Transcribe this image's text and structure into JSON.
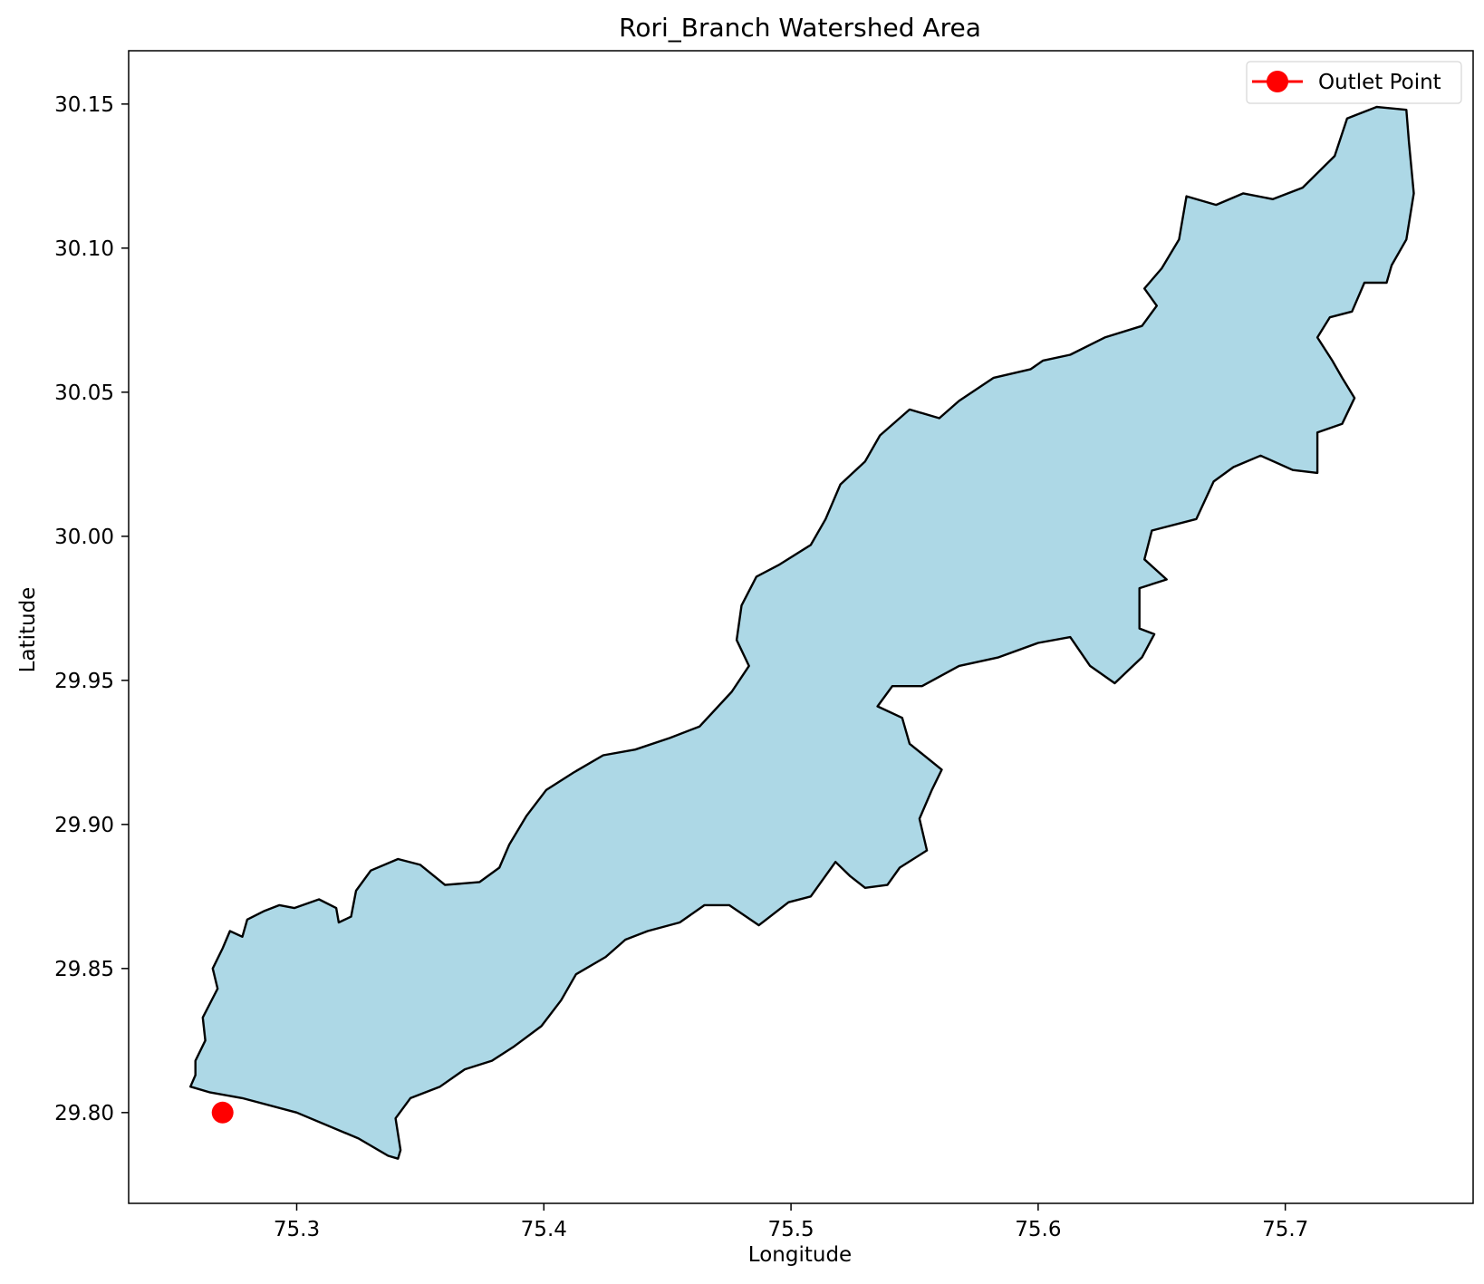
{
  "chart_data": {
    "type": "map",
    "title": "Rori_Branch Watershed Area",
    "xlabel": "Longitude",
    "ylabel": "Latitude",
    "xlim": [
      75.232,
      75.776
    ],
    "ylim": [
      29.7685,
      30.1685
    ],
    "x_ticks": [
      75.3,
      75.4,
      75.5,
      75.6,
      75.7
    ],
    "x_tick_labels": [
      "75.3",
      "75.4",
      "75.5",
      "75.6",
      "75.7"
    ],
    "y_ticks": [
      29.8,
      29.85,
      29.9,
      29.95,
      30.0,
      30.05,
      30.1,
      30.15
    ],
    "y_tick_labels": [
      "29.80",
      "29.85",
      "29.90",
      "29.95",
      "30.00",
      "30.05",
      "30.10",
      "30.15"
    ],
    "grid": false,
    "legend": {
      "location": "top-right",
      "entries": [
        {
          "label": "Outlet Point",
          "color": "#ff0000"
        }
      ]
    },
    "watershed": {
      "fill_color": "#add8e6",
      "edge_color": "#000000",
      "boundary": [
        [
          75.257,
          29.809
        ],
        [
          75.259,
          29.813
        ],
        [
          75.259,
          29.818
        ],
        [
          75.263,
          29.825
        ],
        [
          75.262,
          29.833
        ],
        [
          75.265,
          29.838
        ],
        [
          75.268,
          29.843
        ],
        [
          75.266,
          29.85
        ],
        [
          75.27,
          29.857
        ],
        [
          75.273,
          29.863
        ],
        [
          75.278,
          29.861
        ],
        [
          75.28,
          29.867
        ],
        [
          75.287,
          29.87
        ],
        [
          75.293,
          29.872
        ],
        [
          75.299,
          29.871
        ],
        [
          75.309,
          29.874
        ],
        [
          75.316,
          29.871
        ],
        [
          75.317,
          29.866
        ],
        [
          75.322,
          29.868
        ],
        [
          75.324,
          29.877
        ],
        [
          75.33,
          29.884
        ],
        [
          75.341,
          29.888
        ],
        [
          75.35,
          29.886
        ],
        [
          75.36,
          29.879
        ],
        [
          75.374,
          29.88
        ],
        [
          75.382,
          29.885
        ],
        [
          75.386,
          29.893
        ],
        [
          75.393,
          29.903
        ],
        [
          75.401,
          29.912
        ],
        [
          75.412,
          29.918
        ],
        [
          75.424,
          29.924
        ],
        [
          75.437,
          29.926
        ],
        [
          75.451,
          29.93
        ],
        [
          75.463,
          29.934
        ],
        [
          75.476,
          29.946
        ],
        [
          75.483,
          29.955
        ],
        [
          75.478,
          29.964
        ],
        [
          75.48,
          29.976
        ],
        [
          75.486,
          29.986
        ],
        [
          75.495,
          29.99
        ],
        [
          75.508,
          29.997
        ],
        [
          75.514,
          30.006
        ],
        [
          75.52,
          30.018
        ],
        [
          75.53,
          30.026
        ],
        [
          75.536,
          30.035
        ],
        [
          75.548,
          30.044
        ],
        [
          75.56,
          30.041
        ],
        [
          75.568,
          30.047
        ],
        [
          75.582,
          30.055
        ],
        [
          75.597,
          30.058
        ],
        [
          75.602,
          30.061
        ],
        [
          75.613,
          30.063
        ],
        [
          75.627,
          30.069
        ],
        [
          75.642,
          30.073
        ],
        [
          75.648,
          30.08
        ],
        [
          75.643,
          30.086
        ],
        [
          75.65,
          30.093
        ],
        [
          75.657,
          30.103
        ],
        [
          75.66,
          30.118
        ],
        [
          75.672,
          30.115
        ],
        [
          75.683,
          30.119
        ],
        [
          75.695,
          30.117
        ],
        [
          75.707,
          30.121
        ],
        [
          75.72,
          30.132
        ],
        [
          75.725,
          30.145
        ],
        [
          75.737,
          30.149
        ],
        [
          75.749,
          30.148
        ],
        [
          75.75,
          30.137
        ],
        [
          75.752,
          30.119
        ],
        [
          75.749,
          30.103
        ],
        [
          75.743,
          30.094
        ],
        [
          75.741,
          30.088
        ],
        [
          75.732,
          30.088
        ],
        [
          75.727,
          30.078
        ],
        [
          75.718,
          30.076
        ],
        [
          75.713,
          30.069
        ],
        [
          75.719,
          30.061
        ],
        [
          75.723,
          30.055
        ],
        [
          75.728,
          30.048
        ],
        [
          75.723,
          30.039
        ],
        [
          75.713,
          30.036
        ],
        [
          75.713,
          30.022
        ],
        [
          75.703,
          30.023
        ],
        [
          75.69,
          30.028
        ],
        [
          75.679,
          30.024
        ],
        [
          75.671,
          30.019
        ],
        [
          75.664,
          30.006
        ],
        [
          75.646,
          30.002
        ],
        [
          75.643,
          29.992
        ],
        [
          75.652,
          29.985
        ],
        [
          75.641,
          29.982
        ],
        [
          75.641,
          29.968
        ],
        [
          75.647,
          29.966
        ],
        [
          75.642,
          29.958
        ],
        [
          75.631,
          29.949
        ],
        [
          75.621,
          29.955
        ],
        [
          75.613,
          29.965
        ],
        [
          75.6,
          29.963
        ],
        [
          75.584,
          29.958
        ],
        [
          75.568,
          29.955
        ],
        [
          75.553,
          29.948
        ],
        [
          75.541,
          29.948
        ],
        [
          75.535,
          29.941
        ],
        [
          75.545,
          29.937
        ],
        [
          75.548,
          29.928
        ],
        [
          75.561,
          29.919
        ],
        [
          75.557,
          29.912
        ],
        [
          75.552,
          29.902
        ],
        [
          75.555,
          29.891
        ],
        [
          75.544,
          29.885
        ],
        [
          75.539,
          29.879
        ],
        [
          75.53,
          29.878
        ],
        [
          75.524,
          29.882
        ],
        [
          75.518,
          29.887
        ],
        [
          75.508,
          29.875
        ],
        [
          75.499,
          29.873
        ],
        [
          75.487,
          29.865
        ],
        [
          75.475,
          29.872
        ],
        [
          75.465,
          29.872
        ],
        [
          75.455,
          29.866
        ],
        [
          75.442,
          29.863
        ],
        [
          75.433,
          29.86
        ],
        [
          75.425,
          29.854
        ],
        [
          75.413,
          29.848
        ],
        [
          75.407,
          29.839
        ],
        [
          75.399,
          29.83
        ],
        [
          75.388,
          29.823
        ],
        [
          75.379,
          29.818
        ],
        [
          75.368,
          29.815
        ],
        [
          75.358,
          29.809
        ],
        [
          75.346,
          29.805
        ],
        [
          75.34,
          29.798
        ],
        [
          75.342,
          29.787
        ],
        [
          75.341,
          29.784
        ],
        [
          75.337,
          29.785
        ],
        [
          75.325,
          29.791
        ],
        [
          75.3,
          29.8
        ],
        [
          75.278,
          29.805
        ],
        [
          75.265,
          29.807
        ],
        [
          75.257,
          29.809
        ]
      ]
    },
    "outlet_point": {
      "label": "Outlet Point",
      "lon": 75.27,
      "lat": 29.8,
      "color": "#ff0000"
    }
  }
}
